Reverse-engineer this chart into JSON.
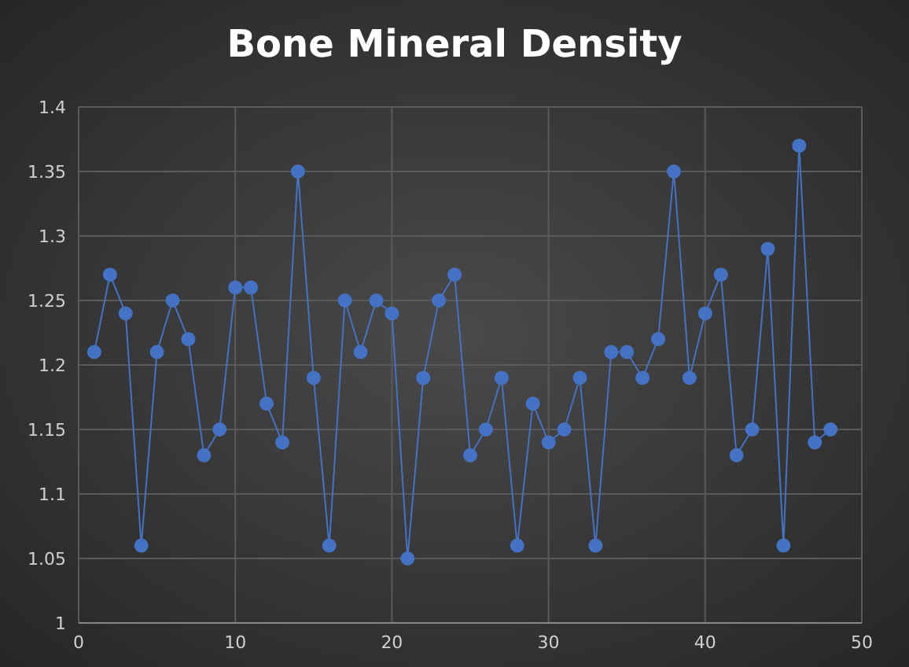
{
  "chart_data": {
    "type": "line",
    "title": "Bone Mineral Density",
    "x": [
      1,
      2,
      3,
      4,
      5,
      6,
      7,
      8,
      9,
      10,
      11,
      12,
      13,
      14,
      15,
      16,
      17,
      18,
      19,
      20,
      21,
      22,
      23,
      24,
      25,
      26,
      27,
      28,
      29,
      30,
      31,
      32,
      33,
      34,
      35,
      36,
      37,
      38,
      39,
      40,
      41,
      42,
      43,
      44,
      45,
      46,
      47,
      48
    ],
    "series": [
      {
        "color": "#4472c4",
        "values": [
          1.21,
          1.27,
          1.24,
          1.06,
          1.21,
          1.25,
          1.22,
          1.13,
          1.15,
          1.26,
          1.26,
          1.17,
          1.14,
          1.35,
          1.19,
          1.06,
          1.25,
          1.21,
          1.25,
          1.24,
          1.05,
          1.19,
          1.25,
          1.27,
          1.13,
          1.15,
          1.19,
          1.06,
          1.17,
          1.14,
          1.15,
          1.19,
          1.06,
          1.21,
          1.21,
          1.19,
          1.22,
          1.35,
          1.19,
          1.24,
          1.27,
          1.13,
          1.15,
          1.29,
          1.06,
          1.37,
          1.14,
          1.15
        ]
      }
    ],
    "xlim": [
      0,
      50
    ],
    "xticks": [
      0,
      10,
      20,
      30,
      40,
      50
    ],
    "ylim": [
      1,
      1.4
    ],
    "yticks": [
      1,
      1.05,
      1.1,
      1.15,
      1.2,
      1.25,
      1.3,
      1.35,
      1.4
    ],
    "grid": true,
    "marker": "circle",
    "line_style": "solid",
    "legend": false
  }
}
